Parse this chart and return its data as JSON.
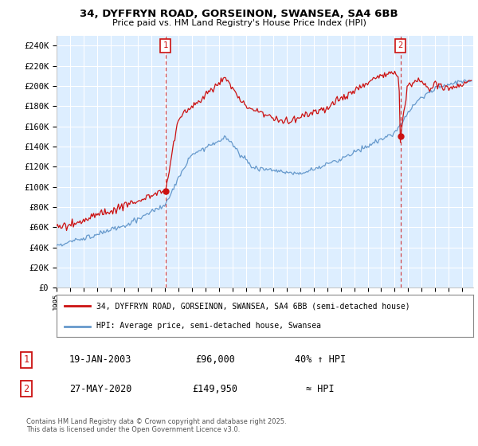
{
  "title_line1": "34, DYFFRYN ROAD, GORSEINON, SWANSEA, SA4 6BB",
  "title_line2": "Price paid vs. HM Land Registry's House Price Index (HPI)",
  "ylabel_ticks": [
    "£0",
    "£20K",
    "£40K",
    "£60K",
    "£80K",
    "£100K",
    "£120K",
    "£140K",
    "£160K",
    "£180K",
    "£200K",
    "£220K",
    "£240K"
  ],
  "ytick_values": [
    0,
    20000,
    40000,
    60000,
    80000,
    100000,
    120000,
    140000,
    160000,
    180000,
    200000,
    220000,
    240000
  ],
  "ylim": [
    0,
    250000
  ],
  "xlim_start": 1995.0,
  "xlim_end": 2025.8,
  "marker1_x": 2003.05,
  "marker1_y": 96000,
  "marker1_label": "1",
  "marker2_x": 2020.42,
  "marker2_y": 149950,
  "marker2_label": "2",
  "dashed_line1_x": 2003.05,
  "dashed_line2_x": 2020.42,
  "legend_line1": "34, DYFFRYN ROAD, GORSEINON, SWANSEA, SA4 6BB (semi-detached house)",
  "legend_line2": "HPI: Average price, semi-detached house, Swansea",
  "table_row1": [
    "1",
    "19-JAN-2003",
    "£96,000",
    "40% ↑ HPI"
  ],
  "table_row2": [
    "2",
    "27-MAY-2020",
    "£149,950",
    "≈ HPI"
  ],
  "footer": "Contains HM Land Registry data © Crown copyright and database right 2025.\nThis data is licensed under the Open Government Licence v3.0.",
  "hpi_color": "#6699cc",
  "property_color": "#cc1111",
  "background_color": "#ddeeff",
  "plot_bg_color": "#ddeeff",
  "grid_color": "#ffffff",
  "dashed_color": "#cc1111"
}
